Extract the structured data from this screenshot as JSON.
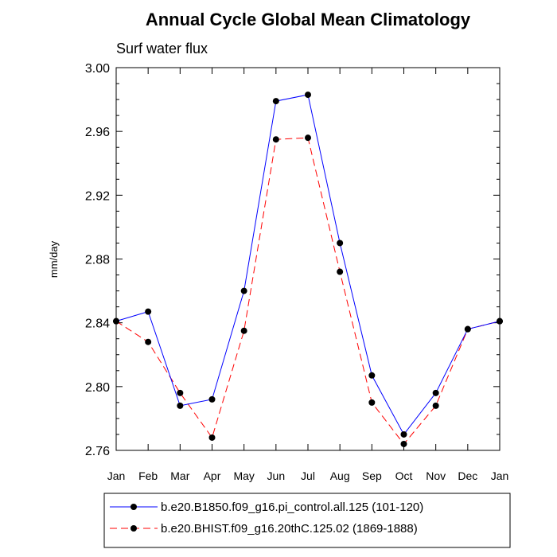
{
  "chart_data": {
    "type": "line",
    "title": "Annual Cycle Global Mean Climatology",
    "subtitle": "Surf water flux",
    "xlabel": "",
    "ylabel": "mm/day",
    "categories": [
      "Jan",
      "Feb",
      "Mar",
      "Apr",
      "May",
      "Jun",
      "Jul",
      "Aug",
      "Sep",
      "Oct",
      "Nov",
      "Dec",
      "Jan"
    ],
    "ylim": [
      2.76,
      3.0
    ],
    "yticks": [
      "2.76",
      "2.80",
      "2.84",
      "2.88",
      "2.92",
      "2.96",
      "3.00"
    ],
    "grid": false,
    "legend_position": "bottom",
    "series": [
      {
        "name": "b.e20.B1850.f09_g16.pi_control.all.125 (101-120)",
        "color": "#0000ff",
        "line_style": "solid",
        "values": [
          2.841,
          2.847,
          2.788,
          2.792,
          2.86,
          2.979,
          2.983,
          2.89,
          2.807,
          2.77,
          2.796,
          2.836,
          2.841
        ]
      },
      {
        "name": "b.e20.BHIST.f09_g16.20thC.125.02 (1869-1888)",
        "color": "#ff0000",
        "line_style": "dashed",
        "values": [
          2.841,
          2.828,
          2.796,
          2.768,
          2.835,
          2.955,
          2.956,
          2.872,
          2.79,
          2.764,
          2.788,
          2.836,
          2.841
        ]
      }
    ]
  }
}
